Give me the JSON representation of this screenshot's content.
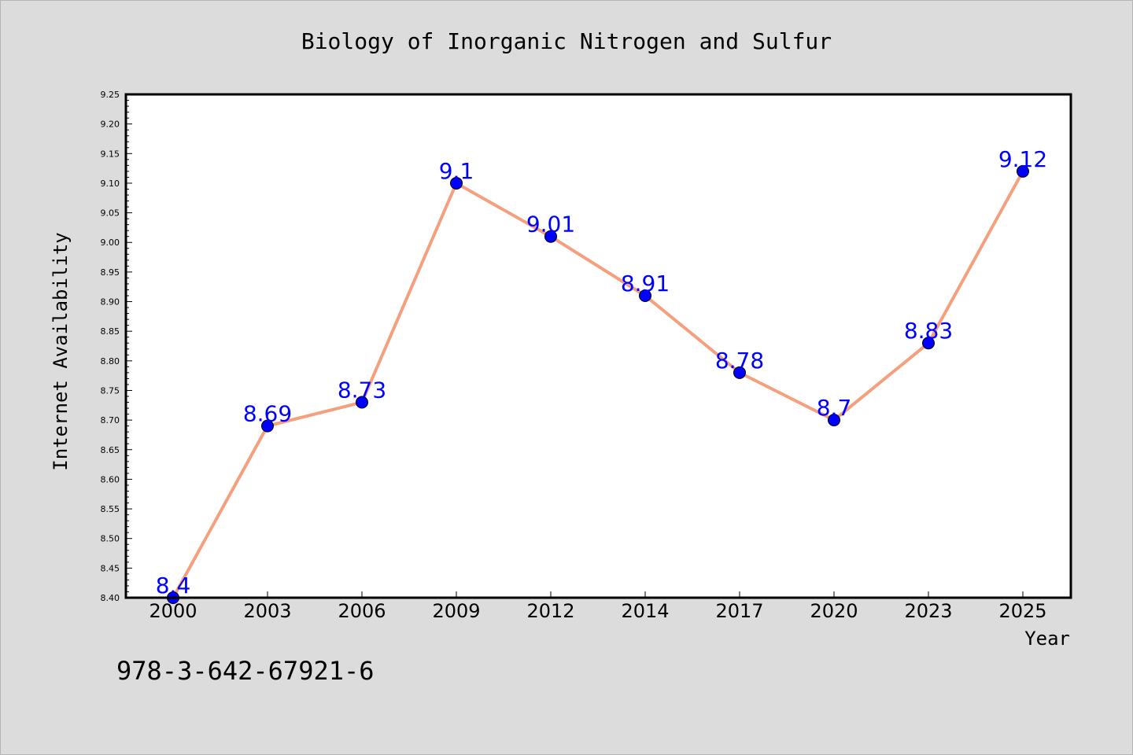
{
  "chart_data": {
    "type": "line",
    "title": "Biology of Inorganic Nitrogen and Sulfur",
    "xlabel": "Year",
    "ylabel": "Internet Availability",
    "categories": [
      "2000",
      "2003",
      "2006",
      "2009",
      "2012",
      "2014",
      "2017",
      "2020",
      "2023",
      "2025"
    ],
    "series": [
      {
        "values": [
          8.4,
          8.69,
          8.73,
          9.1,
          9.01,
          8.91,
          8.78,
          8.7,
          8.83,
          9.12
        ],
        "data_labels": [
          "8.4",
          "8.69",
          "8.73",
          "9.1",
          "9.01",
          "8.91",
          "8.78",
          "8.7",
          "8.83",
          "9.12"
        ],
        "line_color": "#f4a07e",
        "marker_color": "#0000ff",
        "label_color": "#0000ff"
      }
    ],
    "ylim": [
      8.4,
      9.25
    ],
    "yticks": [
      "8.40",
      "8.45",
      "8.50",
      "8.55",
      "8.60",
      "8.65",
      "8.70",
      "8.75",
      "8.80",
      "8.85",
      "8.90",
      "8.95",
      "9.00",
      "9.05",
      "9.10",
      "9.15",
      "9.20",
      "9.25"
    ],
    "grid": false,
    "legend": "none"
  },
  "footer_text": "978-3-642-67921-6",
  "colors": {
    "background": "#dcdcdc",
    "plot_background": "#ffffff",
    "axis": "#000000",
    "text": "#000000"
  }
}
